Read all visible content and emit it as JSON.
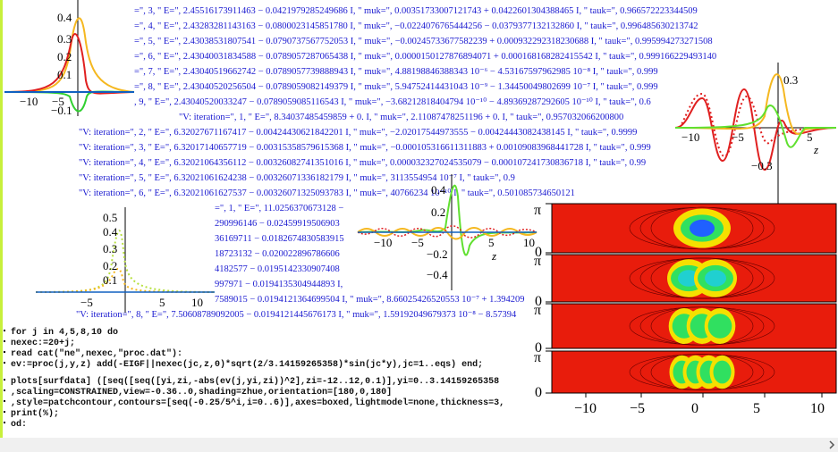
{
  "output_lines": [
    "=\", 3, \" E=\", 2.45516173911463 − 0.0421979285249686 I, \" muk=\", 0.00351733007121743 + 0.0422601304388465 I, \" tauk=\", 0.966572223344509",
    "=\", 4, \" E=\", 2.43283281143163 − 0.0800023145851780 I, \" muk=\", −0.0224076765444256 − 0.0379377132132860 I, \" tauk=\", 0.996485630213742",
    "=\", 5, \" E=\", 2.43038531807541 − 0.0790737567752053 I, \" muk=\", −0.00245733677582239 + 0.000932292318230688 I, \" tauk=\", 0.995994273271508",
    "=\", 6, \" E=\", 2.43040031834588 − 0.0789057287065438 I, \" muk=\", 0.0000150127876894071 + 0.000168168282415542 I, \" tauk=\", 0.999166229493140",
    "=\", 7, \" E=\", 2.43040519662742 − 0.0789057739888943 I, \" muk=\", 4.88198846388343 10⁻⁶ − 4.53167597962985 10⁻⁸ I, \" tauk=\", 0.999",
    "=\", 8, \" E=\", 2.43040520256504 − 0.0789059082149379 I, \" muk=\", 5.94752414431043 10⁻⁹ − 1.34450049802699 10⁻⁷ I, \" tauk=\", 0.999",
    ", 9, \" E=\", 2.43040520033247 − 0.0789059085116543 I, \" muk=\", −3.68212818404794 10⁻¹⁰ − 4.89369287292605 10⁻¹⁰ I, \" tauk=\", 0.6",
    "\"V: iteration=\", 1, \" E=\", 8.34037485459859 + 0. I, \" muk=\", 2.11087478251196 + 0. I, \" tauk=\", 0.957032066200800",
    "\"V: iteration=\", 2, \" E=\", 6.32027671167417 − 0.00424430621842201 I, \" muk=\", −2.02017544973555 − 0.00424443082438145 I, \" tauk=\", 0.9999",
    "\"V: iteration=\", 3, \" E=\", 6.32017140657719 − 0.00315358579615368 I, \" muk=\", −0.000105316611311883 + 0.00109083968441728 I, \" tauk=\", 0.999",
    "\"V: iteration=\", 4, \" E=\", 6.32021064356112 − 0.00326082741351016 I, \" muk=\", 0.000032327024535079 − 0.000107241730836718 I, \" tauk=\", 0.99",
    "\"V: iteration=\", 5, \" E=\", 6.32021061624238 − 0.00326071336182179 I, \" muk=\", 3113554954 10⁻⁷ I, \" tauk=\", 0.9",
    "\"V: iteration=\", 6, \" E=\", 6.32021061627537 − 0.00326071325093783 I, \" muk=\", 40766234 10⁻¹⁰ I, \" tauk=\", 0.501085734650121",
    "=\", 1, \" E=\", 11.0256370673128 −",
    "290996146 − 0.02459919506903",
    "36169711 − 0.0182674830583915",
    "18723132 − 0.020022896786606",
    "4182577 − 0.0195142330907408",
    "997971 − 0.0194135304944893 I,",
    "7589015 − 0.0194121364699504 I, \" muk=\", 8.66025426520553 10⁻⁷ + 1.394209",
    "\"V: iteration=\", 8, \" E=\", 7.50608789092005 − 0.0194121445676173 I, \" muk=\", 1.59192049679373 10⁻⁸ − 8.57394"
  ],
  "plots": [
    {
      "x_ticks": [
        "−10",
        "−5"
      ],
      "y_ticks": [
        "0.4",
        "0.3",
        "0.2",
        "0.1",
        "−0.1"
      ]
    },
    {
      "x_ticks": [
        "−10",
        "−5",
        "5"
      ],
      "y_ticks": [
        "0.3",
        "−0.3"
      ],
      "axis_label": "z"
    },
    {
      "x_ticks": [
        "−10",
        "−5",
        "5",
        "10"
      ],
      "y_ticks": [
        "0.4",
        "0.2",
        "−0.2",
        "−0.4"
      ],
      "axis_label": "z"
    },
    {
      "x_ticks": [
        "−5",
        "5",
        "10"
      ],
      "y_ticks": [
        "0.5",
        "0.4",
        "0.3",
        "0.2",
        "0.1"
      ]
    }
  ],
  "contour_plot": {
    "y_ticks": [
      "π",
      "0"
    ],
    "x_ticks": [
      "−10",
      "−5",
      "0",
      "5",
      "10"
    ]
  },
  "code": [
    "for j in 4,5,8,10 do",
    "nexec:=20+j;",
    " read cat(\"ne\",nexec,\"proc.dat\"):",
    " ev:=proc(j,y,z) add(-EIGF||nexec(jc,z,0)*sqrt(2/3.14159265358)*sin(jc*y),jc=1..eqs) end;",
    "plots[surfdata] ([seq([seq([yi,zi,-abs(ev(j,yi,zi))^2],zi=-12..12,0.1)],yi=0..3.14159265358",
    ",scaling=CONSTRAINED,view=-0.36..0,shading=zhue,orientation=[180,0,180]",
    ",style=patchcontour,contours=[seq(-0.25/5^i,i=0..6)],axes=boxed,lightmodel=none,thickness=3,",
    "print(%);",
    "od:"
  ]
}
